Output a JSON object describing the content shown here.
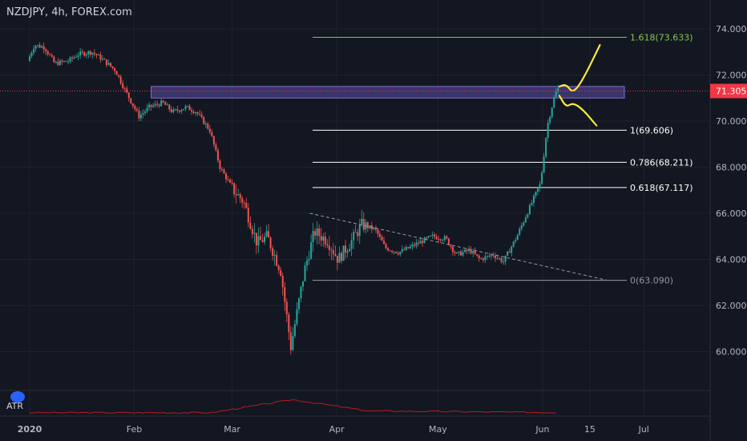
{
  "header": {
    "title": "NZDJPY, 4h, FOREX.com"
  },
  "indicator": {
    "label": "ATR"
  },
  "colors": {
    "background": "#131722",
    "bull": "#26a69a",
    "bear": "#ef5350",
    "fib_green": "#8bc34a",
    "fib_white": "#ffffff",
    "fib_gray": "#9598a1",
    "price_line": "#f23645",
    "zone": "#5b4da3",
    "scenario": "#ffeb3b",
    "atr": "#b71c1c"
  },
  "chart_data": {
    "type": "candlestick",
    "symbol": "NZDJPY",
    "timeframe": "4h",
    "ylim": [
      58.5,
      75.0
    ],
    "y_ticks": [
      "74.000",
      "72.000",
      "70.000",
      "68.000",
      "66.000",
      "64.000",
      "62.000",
      "60.000"
    ],
    "x_ticks": [
      "2020",
      "Feb",
      "Mar",
      "Apr",
      "May",
      "Jun",
      "15",
      "Jul"
    ],
    "current_price": {
      "value": 71.305,
      "label": "71.305"
    },
    "fib_levels": [
      {
        "ratio": "1.618",
        "value": 73.633,
        "label": "1.618(73.633)",
        "color": "green"
      },
      {
        "ratio": "1",
        "value": 69.606,
        "label": "1(69.606)",
        "color": "white"
      },
      {
        "ratio": "0.786",
        "value": 68.211,
        "label": "0.786(68.211)",
        "color": "white"
      },
      {
        "ratio": "0.618",
        "value": 67.117,
        "label": "0.618(67.117)",
        "color": "white"
      },
      {
        "ratio": "0",
        "value": 63.09,
        "label": "0(63.090)",
        "color": "gray"
      }
    ],
    "resistance_zone": [
      71.0,
      71.5
    ],
    "price_path": [
      [
        "2020-01-01",
        72.6
      ],
      [
        "2020-01-03",
        73.3
      ],
      [
        "2020-01-06",
        73.2
      ],
      [
        "2020-01-09",
        72.5
      ],
      [
        "2020-01-13",
        72.6
      ],
      [
        "2020-01-16",
        72.9
      ],
      [
        "2020-01-20",
        73.0
      ],
      [
        "2020-01-23",
        72.7
      ],
      [
        "2020-01-27",
        72.2
      ],
      [
        "2020-01-30",
        71.3
      ],
      [
        "2020-02-03",
        70.2
      ],
      [
        "2020-02-06",
        70.6
      ],
      [
        "2020-02-10",
        70.8
      ],
      [
        "2020-02-13",
        70.4
      ],
      [
        "2020-02-17",
        70.6
      ],
      [
        "2020-02-20",
        70.4
      ],
      [
        "2020-02-24",
        69.6
      ],
      [
        "2020-02-27",
        68.0
      ],
      [
        "2020-03-02",
        67.0
      ],
      [
        "2020-03-05",
        66.5
      ],
      [
        "2020-03-09",
        64.7
      ],
      [
        "2020-03-12",
        65.0
      ],
      [
        "2020-03-16",
        63.5
      ],
      [
        "2020-03-19",
        60.2
      ],
      [
        "2020-03-23",
        63.5
      ],
      [
        "2020-03-26",
        65.2
      ],
      [
        "2020-03-30",
        64.8
      ],
      [
        "2020-04-02",
        64.0
      ],
      [
        "2020-04-06",
        64.8
      ],
      [
        "2020-04-09",
        65.5
      ],
      [
        "2020-04-13",
        65.3
      ],
      [
        "2020-04-16",
        64.5
      ],
      [
        "2020-04-20",
        64.3
      ],
      [
        "2020-04-23",
        64.5
      ],
      [
        "2020-04-27",
        64.8
      ],
      [
        "2020-04-30",
        65.0
      ],
      [
        "2020-05-04",
        64.9
      ],
      [
        "2020-05-07",
        64.2
      ],
      [
        "2020-05-11",
        64.4
      ],
      [
        "2020-05-14",
        64.0
      ],
      [
        "2020-05-18",
        64.2
      ],
      [
        "2020-05-21",
        63.9
      ],
      [
        "2020-05-25",
        65.0
      ],
      [
        "2020-05-28",
        66.0
      ],
      [
        "2020-06-01",
        67.3
      ],
      [
        "2020-06-03",
        69.8
      ],
      [
        "2020-06-05",
        71.0
      ],
      [
        "2020-06-06",
        71.4
      ]
    ],
    "trendline": [
      [
        "2020-03-24",
        66.0
      ],
      [
        "2020-06-20",
        63.1
      ]
    ],
    "scenarios": [
      {
        "name": "bull",
        "points": [
          [
            "2020-06-06",
            71.5
          ],
          [
            "2020-06-08",
            71.6
          ],
          [
            "2020-06-10",
            71.2
          ],
          [
            "2020-06-13",
            71.8
          ],
          [
            "2020-06-18",
            73.3
          ]
        ]
      },
      {
        "name": "bear",
        "points": [
          [
            "2020-06-06",
            71.1
          ],
          [
            "2020-06-08",
            70.6
          ],
          [
            "2020-06-10",
            70.8
          ],
          [
            "2020-06-13",
            70.5
          ],
          [
            "2020-06-17",
            69.8
          ]
        ]
      }
    ]
  }
}
